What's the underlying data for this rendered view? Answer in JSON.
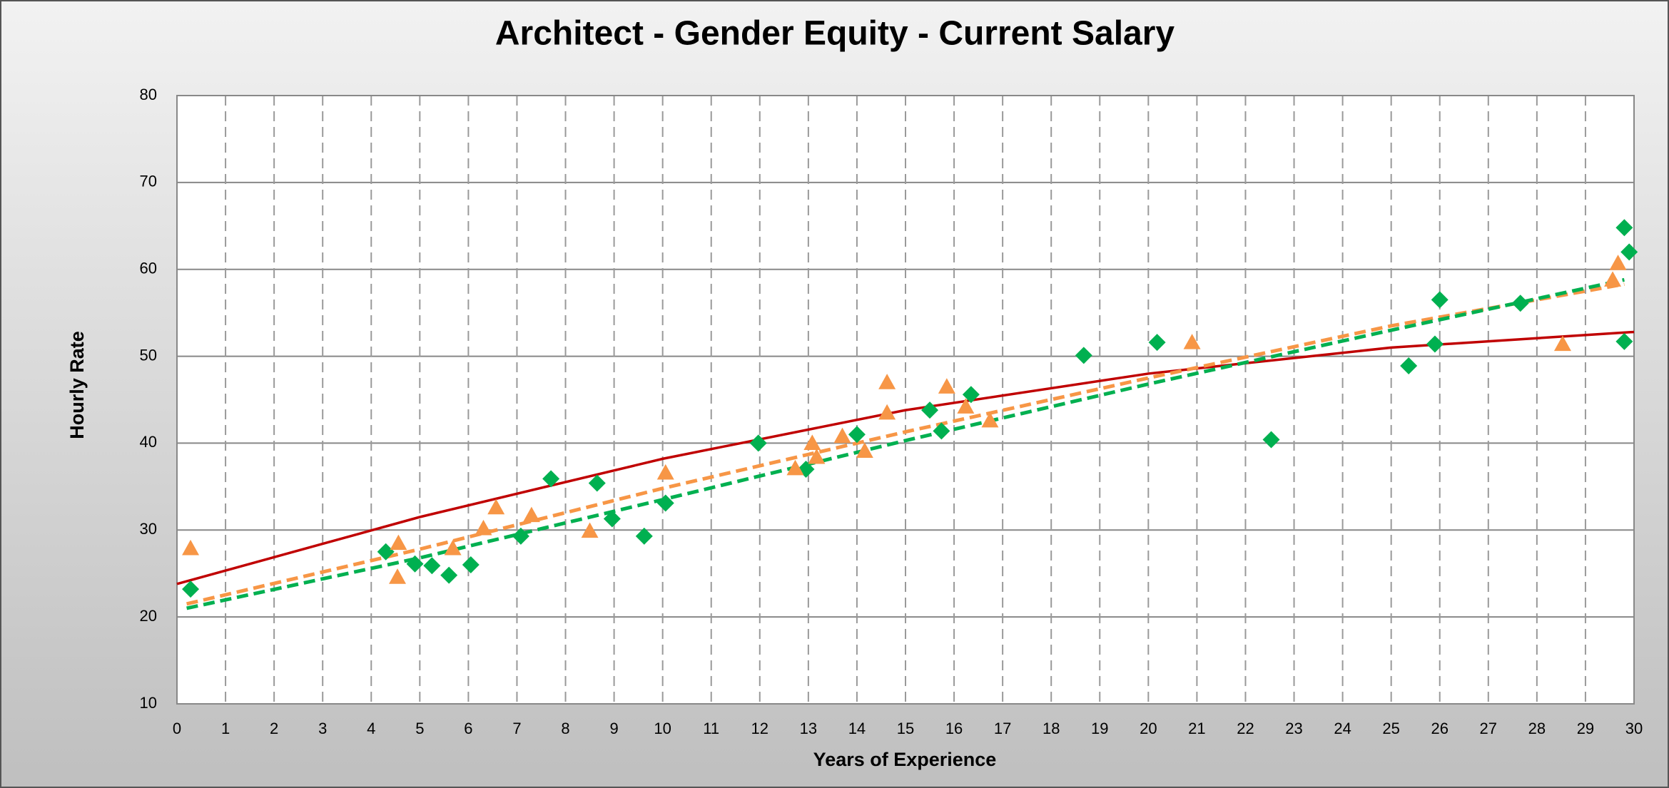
{
  "chart_data": {
    "type": "scatter",
    "title": "Architect - Gender Equity - Current Salary",
    "x_label": "Years of Experience",
    "y_label": "Hourly Rate",
    "xlim": [
      0,
      30
    ],
    "xticks": [
      0,
      1,
      2,
      3,
      4,
      5,
      6,
      7,
      8,
      9,
      10,
      11,
      12,
      13,
      14,
      15,
      16,
      17,
      18,
      19,
      20,
      21,
      22,
      23,
      24,
      25,
      26,
      27,
      28,
      29,
      30
    ],
    "ylim": [
      10,
      80
    ],
    "yticks": [
      10,
      20,
      30,
      40,
      50,
      60,
      70,
      80
    ],
    "grid": true,
    "series": [
      {
        "type": "scatter",
        "marker": "diamond",
        "color": "#00b050",
        "x": [
          0.28,
          4.3,
          4.9,
          5.25,
          5.6,
          6.05,
          7.08,
          7.7,
          8.65,
          8.96,
          9.62,
          10.06,
          11.97,
          12.95,
          14.0,
          15.5,
          15.74,
          16.35,
          18.67,
          20.18,
          22.53,
          25.36,
          25.9,
          26.0,
          27.66,
          29.8,
          29.9,
          29.8
        ],
        "values": [
          23.2,
          27.5,
          26.1,
          25.9,
          24.8,
          26.0,
          29.3,
          35.9,
          35.4,
          31.3,
          29.3,
          33.1,
          40.0,
          37.0,
          41.0,
          43.8,
          41.4,
          45.6,
          50.1,
          51.6,
          40.4,
          48.9,
          51.4,
          56.5,
          56.1,
          64.8,
          62.0,
          51.7
        ]
      },
      {
        "type": "scatter",
        "marker": "triangle",
        "color": "#f79646",
        "x": [
          0.28,
          4.56,
          4.54,
          5.68,
          6.31,
          6.57,
          7.3,
          8.5,
          10.06,
          12.73,
          13.08,
          13.17,
          13.7,
          14.16,
          14.62,
          14.62,
          15.85,
          16.24,
          16.74,
          20.9,
          28.53,
          29.56,
          29.67
        ],
        "values": [
          27.9,
          28.5,
          24.6,
          27.9,
          30.2,
          32.6,
          31.7,
          29.9,
          36.6,
          37.1,
          40.0,
          38.4,
          40.8,
          39.1,
          47.0,
          43.5,
          46.5,
          44.2,
          42.6,
          51.6,
          51.4,
          58.8,
          60.7
        ]
      },
      {
        "type": "line",
        "dash": false,
        "color": "#c00000",
        "x": [
          0,
          5,
          10,
          15,
          20,
          25,
          30
        ],
        "values": [
          23.8,
          31.5,
          38.2,
          43.8,
          48.0,
          51.0,
          52.8
        ]
      },
      {
        "type": "line",
        "dash": true,
        "color": "#f79646",
        "x": [
          0.2,
          5,
          10,
          15,
          20,
          25,
          29.8
        ],
        "values": [
          21.5,
          27.8,
          34.8,
          41.3,
          47.5,
          53.5,
          58.3
        ]
      },
      {
        "type": "line",
        "dash": true,
        "color": "#00b050",
        "x": [
          0.2,
          5,
          10,
          15,
          20,
          25,
          29.8
        ],
        "values": [
          21.0,
          26.8,
          33.5,
          40.3,
          46.8,
          53.0,
          58.8
        ]
      }
    ]
  }
}
